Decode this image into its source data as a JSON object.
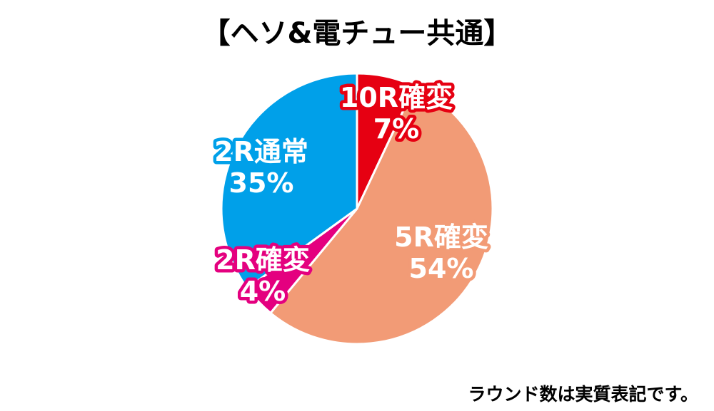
{
  "chart_data": {
    "type": "pie",
    "title": "【ヘソ&電チュー共通】",
    "slices": [
      {
        "label": "10R確変",
        "value": 7,
        "value_label": "7%",
        "color": "#e60012"
      },
      {
        "label": "5R確変",
        "value": 54,
        "value_label": "54%",
        "color": "#f29b76"
      },
      {
        "label": "2R確変",
        "value": 4,
        "value_label": "4%",
        "color": "#e4007f"
      },
      {
        "label": "2R通常",
        "value": 35,
        "value_label": "35%",
        "color": "#00a0e9"
      }
    ],
    "start": "top",
    "direction": "clockwise",
    "legend": "none",
    "labels": "on-slice"
  },
  "footnote": "ラウンド数は実質表記です。"
}
